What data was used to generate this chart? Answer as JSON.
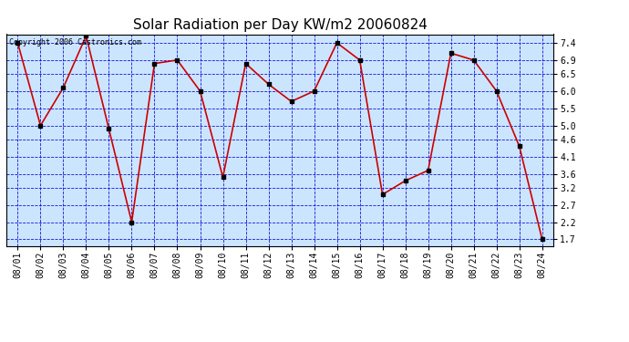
{
  "title": "Solar Radiation per Day KW/m2 20060824",
  "copyright_text": "Copyright 2006 Castronics.com",
  "dates": [
    "08/01",
    "08/02",
    "08/03",
    "08/04",
    "08/05",
    "08/06",
    "08/07",
    "08/08",
    "08/09",
    "08/10",
    "08/11",
    "08/12",
    "08/13",
    "08/14",
    "08/15",
    "08/16",
    "08/17",
    "08/18",
    "08/19",
    "08/20",
    "08/21",
    "08/22",
    "08/23",
    "08/24"
  ],
  "values": [
    7.4,
    5.0,
    6.1,
    7.6,
    4.9,
    2.2,
    6.8,
    6.9,
    6.0,
    3.5,
    6.8,
    6.2,
    5.7,
    6.0,
    7.4,
    6.9,
    3.0,
    3.4,
    3.7,
    7.1,
    6.9,
    6.0,
    4.4,
    1.7
  ],
  "yticks": [
    1.7,
    2.2,
    2.7,
    3.2,
    3.6,
    4.1,
    4.6,
    5.0,
    5.5,
    6.0,
    6.5,
    6.9,
    7.4
  ],
  "ylim": [
    1.5,
    7.65
  ],
  "line_color": "#cc0000",
  "marker_color": "#000000",
  "grid_color": "#0000cc",
  "plot_bg_color": "#cce5ff",
  "title_fontsize": 11,
  "copyright_fontsize": 6,
  "tick_fontsize": 7,
  "fig_width": 6.9,
  "fig_height": 3.75,
  "dpi": 100
}
